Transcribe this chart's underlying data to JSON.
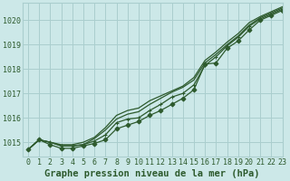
{
  "title": "Graphe pression niveau de la mer (hPa)",
  "background_color": "#cce8e8",
  "grid_color": "#aacece",
  "line_color": "#2d5a2d",
  "xlim": [
    -0.5,
    23
  ],
  "ylim": [
    1014.4,
    1020.7
  ],
  "yticks": [
    1015,
    1016,
    1017,
    1018,
    1019,
    1020
  ],
  "xticks": [
    0,
    1,
    2,
    3,
    4,
    5,
    6,
    7,
    8,
    9,
    10,
    11,
    12,
    13,
    14,
    15,
    16,
    17,
    18,
    19,
    20,
    21,
    22,
    23
  ],
  "series": [
    {
      "y": [
        1014.7,
        1015.1,
        1015.0,
        1014.85,
        1014.85,
        1014.9,
        1015.05,
        1015.3,
        1015.8,
        1015.95,
        1016.0,
        1016.3,
        1016.55,
        1016.85,
        1017.0,
        1017.35,
        1018.15,
        1018.5,
        1018.95,
        1019.3,
        1019.75,
        1020.05,
        1020.25,
        1020.45
      ],
      "marker": true,
      "marker_style": "+",
      "lw": 0.9
    },
    {
      "y": [
        1014.7,
        1015.1,
        1015.0,
        1014.85,
        1014.85,
        1014.9,
        1015.15,
        1015.5,
        1015.95,
        1016.15,
        1016.25,
        1016.55,
        1016.8,
        1017.05,
        1017.25,
        1017.55,
        1018.25,
        1018.6,
        1019.0,
        1019.35,
        1019.8,
        1020.1,
        1020.3,
        1020.5
      ],
      "marker": false,
      "lw": 0.9
    },
    {
      "y": [
        1014.7,
        1015.1,
        1015.0,
        1014.9,
        1014.9,
        1015.0,
        1015.2,
        1015.6,
        1016.1,
        1016.3,
        1016.4,
        1016.7,
        1016.9,
        1017.1,
        1017.3,
        1017.65,
        1018.35,
        1018.7,
        1019.1,
        1019.45,
        1019.9,
        1020.15,
        1020.35,
        1020.55
      ],
      "marker": false,
      "lw": 0.9
    },
    {
      "y": [
        1014.7,
        1015.1,
        1014.9,
        1014.75,
        1014.75,
        1014.85,
        1014.95,
        1015.1,
        1015.55,
        1015.7,
        1015.85,
        1016.1,
        1016.3,
        1016.55,
        1016.8,
        1017.15,
        1018.2,
        1018.25,
        1018.85,
        1019.15,
        1019.6,
        1020.0,
        1020.2,
        1020.4
      ],
      "marker": true,
      "marker_style": "D",
      "lw": 0.9
    }
  ],
  "font_family": "monospace",
  "tick_fontsize": 6.0,
  "xlabel_fontsize": 7.5
}
